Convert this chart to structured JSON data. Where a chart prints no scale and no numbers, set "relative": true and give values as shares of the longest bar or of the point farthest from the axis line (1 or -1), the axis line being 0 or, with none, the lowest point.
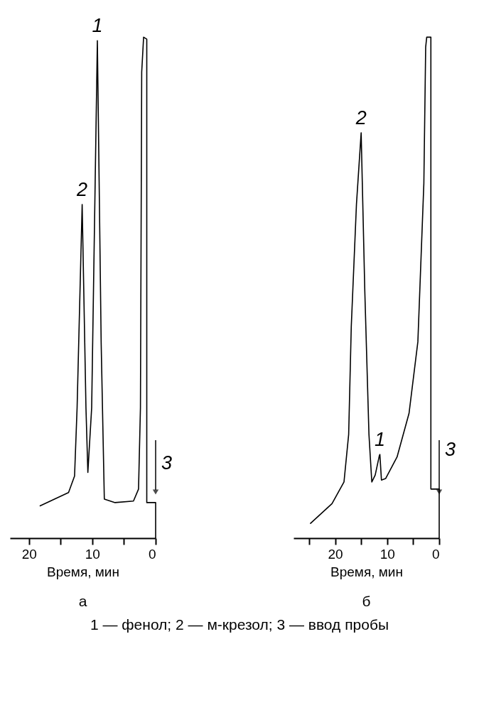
{
  "chart_data": [
    {
      "type": "line",
      "title": "а",
      "xlabel": "Время, мин",
      "relative": true,
      "xlim": [
        23,
        0
      ],
      "xticks": [
        20,
        {
          "value": 15,
          "label": null
        },
        10,
        {
          "value": 5,
          "label": null
        },
        0
      ],
      "series": [
        {
          "color": "#000000",
          "x": [
            18.3,
            13.75,
            12.8,
            12.4,
            11.6,
            11.0,
            10.7,
            10.1,
            9.2,
            8.6,
            8.1,
            6.4,
            3.5,
            2.7,
            2.4,
            2.2,
            1.9,
            1.4,
            1.4,
            0,
            0
          ],
          "values": [
            0.064,
            0.091,
            0.124,
            0.26,
            0.666,
            0.26,
            0.131,
            0.26,
            0.993,
            0.39,
            0.078,
            0.071,
            0.074,
            0.098,
            0.26,
            0.93,
            1,
            0.996,
            0.071,
            0.071,
            0
          ]
        }
      ],
      "annotations": [
        {
          "text": "1",
          "x": 9.2,
          "y": 0.993
        },
        {
          "text": "2",
          "x": 11.6,
          "y": 0.666
        },
        {
          "text": "3",
          "x": 0,
          "y": 0.071
        }
      ],
      "ref_lines": [
        {
          "axis": "x",
          "value": 0
        }
      ]
    },
    {
      "type": "line",
      "title": "б",
      "xlabel": "Время, мин",
      "relative": true,
      "xlim": [
        28,
        0
      ],
      "xticks": [
        {
          "value": 25,
          "label": null
        },
        20,
        {
          "value": 15,
          "label": null
        },
        10,
        {
          "value": 5,
          "label": null
        },
        0
      ],
      "series": [
        {
          "color": "#000000",
          "x": [
            24.8,
            20.6,
            18.3,
            17.4,
            16.9,
            15.9,
            15.0,
            14.3,
            13.5,
            12.95,
            12.3,
            11.5,
            11.4,
            11.1,
            10.3,
            8.1,
            5.8,
            4.1,
            2.95,
            2.6,
            2.4,
            1.6,
            1.6,
            0,
            0
          ],
          "values": [
            0.029,
            0.069,
            0.112,
            0.207,
            0.422,
            0.667,
            0.809,
            0.494,
            0.207,
            0.112,
            0.126,
            0.165,
            0.167,
            0.116,
            0.119,
            0.162,
            0.249,
            0.392,
            0.708,
            0.98,
            1,
            1,
            0.098,
            0.098,
            0
          ]
        }
      ],
      "annotations": [
        {
          "text": "2",
          "x": 15.0,
          "y": 0.809
        },
        {
          "text": "1",
          "x": 11.4,
          "y": 0.167
        },
        {
          "text": "3",
          "x": 0,
          "y": 0.098
        },
        "1 — фенол; 2 — м-крезол; 3 — ввод пробы"
      ],
      "ref_lines": [
        {
          "axis": "x",
          "value": 0
        }
      ]
    }
  ]
}
